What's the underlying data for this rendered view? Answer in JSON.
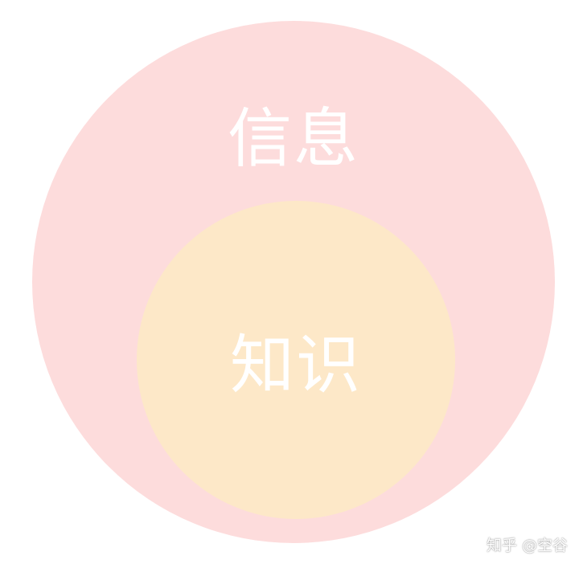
{
  "diagram": {
    "outer": {
      "label": "信息",
      "color": "#fddcdc"
    },
    "inner": {
      "label": "知识",
      "color": "#fde8c8"
    }
  },
  "watermark": {
    "text": "知乎 @空谷"
  }
}
